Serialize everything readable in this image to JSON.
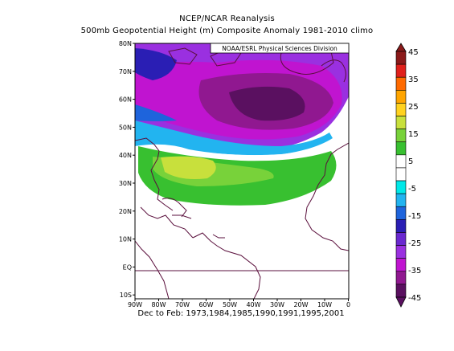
{
  "header": {
    "title": "NCEP/NCAR Reanalysis",
    "subtitle": "500mb Geopotential Height (m) Composite Anomaly 1981-2010 climo"
  },
  "credit": "NOAA/ESRL Physical Sciences Division",
  "footer": "Dec to Feb: 1973,1984,1985,1990,1991,1995,2001",
  "map": {
    "lat_labels": [
      "80N",
      "70N",
      "60N",
      "50N",
      "40N",
      "30N",
      "20N",
      "10N",
      "EQ",
      "10S"
    ],
    "lon_labels": [
      "90W",
      "80W",
      "70W",
      "60W",
      "50W",
      "40W",
      "30W",
      "20W",
      "10W",
      "0"
    ]
  },
  "colorbar": {
    "labels": [
      "45",
      "35",
      "25",
      "15",
      "5",
      "-5",
      "-15",
      "-25",
      "-35",
      "-45"
    ],
    "colors": [
      "#8b1a1a",
      "#e0201b",
      "#ff6a00",
      "#ffa500",
      "#ffd21f",
      "#c8e03c",
      "#78d23a",
      "#38c030",
      "#ffffff",
      "#ffffff",
      "#00e8e8",
      "#22b4f0",
      "#1e64dc",
      "#2a1eb4",
      "#6a28d0",
      "#9a30e0",
      "#c014d0",
      "#901890",
      "#5a1060"
    ]
  },
  "colors": {
    "border": "#5a0f3c",
    "frame": "#000000"
  }
}
